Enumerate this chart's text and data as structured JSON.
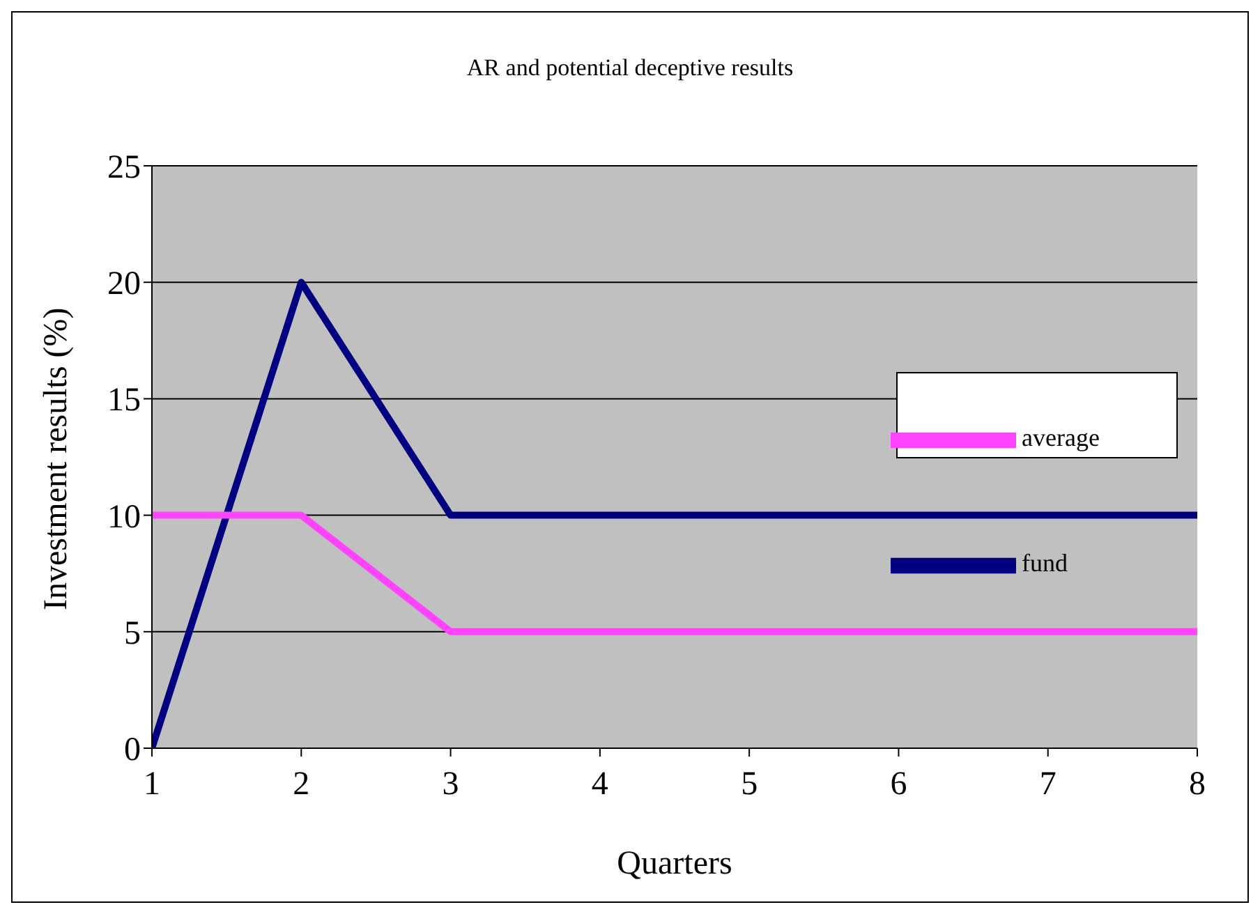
{
  "chart_data": {
    "type": "line",
    "title": "AR and potential deceptive results",
    "xlabel": "Quarters",
    "ylabel": "Investment results (%)",
    "x": [
      1,
      2,
      3,
      4,
      5,
      6,
      7,
      8
    ],
    "series": [
      {
        "name": "fund",
        "color": "#000080",
        "values": [
          0,
          20,
          10,
          10,
          10,
          10,
          10,
          10
        ]
      },
      {
        "name": "average",
        "color": "#ff44ff",
        "values": [
          10,
          10,
          5,
          5,
          5,
          5,
          5,
          5
        ]
      }
    ],
    "xlim": [
      1,
      8
    ],
    "xticks": [
      1,
      2,
      3,
      4,
      5,
      6,
      7,
      8
    ],
    "ylim": [
      0,
      25
    ],
    "yticks": [
      0,
      5,
      10,
      15,
      20,
      25
    ],
    "grid": "y",
    "legend": "right",
    "marker": "none",
    "line_style": "solid"
  }
}
